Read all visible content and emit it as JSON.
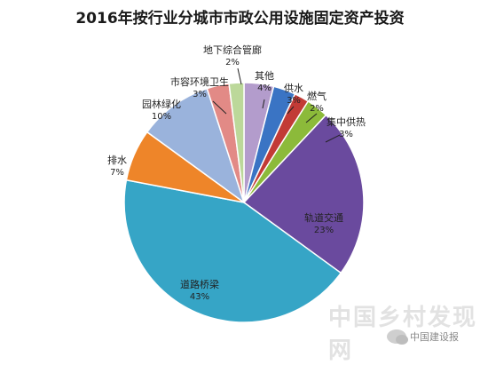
{
  "chart_data": {
    "type": "pie",
    "title": "2016年按行业分城市市政公用设施固定资产投资",
    "slices": [
      {
        "name": "其他",
        "value": 4,
        "label": "4%",
        "color": "#b39ccc"
      },
      {
        "name": "供水",
        "value": 3,
        "label": "3%",
        "color": "#3a74c4"
      },
      {
        "name": "燃气",
        "value": 2,
        "label": "2%",
        "color": "#c23b36"
      },
      {
        "name": "集中供热",
        "value": 3,
        "label": "3%",
        "color": "#8cba3a"
      },
      {
        "name": "轨道交通",
        "value": 23,
        "label": "23%",
        "color": "#6a4a9e"
      },
      {
        "name": "道路桥梁",
        "value": 43,
        "label": "43%",
        "color": "#36a5c6"
      },
      {
        "name": "排水",
        "value": 7,
        "label": "7%",
        "color": "#ee8529"
      },
      {
        "name": "园林绿化",
        "value": 10,
        "label": "10%",
        "color": "#9ab3dc"
      },
      {
        "name": "市容环境卫生",
        "value": 3,
        "label": "3%",
        "color": "#e28a86"
      },
      {
        "name": "地下综合管廊",
        "value": 2,
        "label": "2%",
        "color": "#bcd89a"
      }
    ]
  },
  "watermark": "中国乡村发现网",
  "source": "中国建设报"
}
